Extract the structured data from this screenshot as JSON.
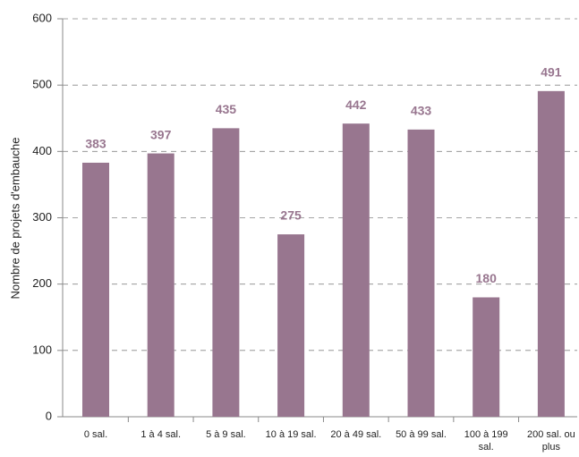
{
  "chart_data": {
    "type": "bar",
    "y_label": "Nombre de projets d'embauche",
    "categories": [
      "0 sal.",
      "1 à 4 sal.",
      "5 à 9 sal.",
      "10 à 19 sal.",
      "20 à 49 sal.",
      "50 à 99 sal.",
      "100 à 199 sal.",
      "200 sal. ou plus"
    ],
    "values": [
      383,
      397,
      435,
      275,
      442,
      433,
      180,
      491
    ],
    "color": "#98768f",
    "ylim": [
      0,
      600
    ],
    "yticks": [
      0,
      100,
      200,
      300,
      400,
      500,
      600
    ],
    "grid": true
  }
}
